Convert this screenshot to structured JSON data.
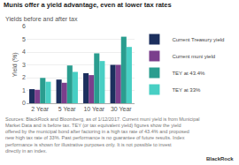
{
  "chart_data": {
    "type": "bar",
    "title": "Munis offer a yield advantage, even at lower tax rates",
    "subtitle": "Yields before and after tax",
    "ylabel": "Yield (%)",
    "categories": [
      "2 Year",
      "5 Year",
      "10 Year",
      "30 Year"
    ],
    "series": [
      {
        "name": "Current Treasury yield",
        "color": "#1c2f5e",
        "values": [
          1.1,
          1.85,
          2.35,
          3.0
        ]
      },
      {
        "name": "Current muni yield",
        "color": "#7b3f8c",
        "values": [
          1.05,
          1.6,
          2.2,
          3.0
        ]
      },
      {
        "name": "TEY at 43.4%",
        "color": "#2a9d8f",
        "values": [
          1.98,
          2.95,
          3.9,
          5.2
        ]
      },
      {
        "name": "TEY at 33%",
        "color": "#48cfc4",
        "values": [
          1.68,
          2.45,
          3.3,
          4.4
        ]
      }
    ],
    "ylim": [
      0,
      6
    ],
    "yticks": [
      0,
      1,
      2,
      3,
      4,
      5,
      6
    ],
    "grid": true,
    "legend": "right",
    "annotations": [
      "Sources: BlackRock and Bloomberg, as of 1/12/2017. Current muni yield is from Municipal Market Data and is before tax. TEY (or tax equivalent yield) figures show the yield offered by the municipal bond after factoring in a high tax rate of 43.4% and proposed new high tax rate of 33%. Past performance is no guarantee of future results. Index performance is shown for illustrative purposes only. It is not possible to invest directly in an index.",
      "BlackRock"
    ]
  }
}
